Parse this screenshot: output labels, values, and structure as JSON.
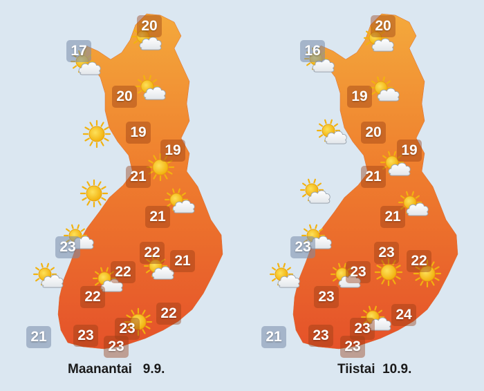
{
  "maps": [
    {
      "day_label": "Maanantai   9.9.",
      "temps": [
        {
          "value": "20"
        },
        {
          "value": "17"
        },
        {
          "value": "20"
        },
        {
          "value": "19"
        },
        {
          "value": "19"
        },
        {
          "value": "21"
        },
        {
          "value": "21"
        },
        {
          "value": "23"
        },
        {
          "value": "22"
        },
        {
          "value": "22"
        },
        {
          "value": "21"
        },
        {
          "value": "22"
        },
        {
          "value": "22"
        },
        {
          "value": "23"
        },
        {
          "value": "21"
        },
        {
          "value": "23"
        },
        {
          "value": "23"
        }
      ],
      "icons": [
        "partly-cloudy-icon",
        "partly-cloudy-icon",
        "partly-cloudy-icon",
        "sun-icon",
        "sun-icon",
        "sun-icon",
        "partly-cloudy-icon",
        "partly-cloudy-icon",
        "partly-cloudy-icon",
        "partly-cloudy-icon",
        "partly-cloudy-icon",
        "sun-icon"
      ]
    },
    {
      "day_label": "Tiistai  10.9.",
      "temps": [
        {
          "value": "20"
        },
        {
          "value": "16"
        },
        {
          "value": "19"
        },
        {
          "value": "20"
        },
        {
          "value": "19"
        },
        {
          "value": "21"
        },
        {
          "value": "21"
        },
        {
          "value": "23"
        },
        {
          "value": "23"
        },
        {
          "value": "23"
        },
        {
          "value": "22"
        },
        {
          "value": "23"
        },
        {
          "value": "24"
        },
        {
          "value": "23"
        },
        {
          "value": "21"
        },
        {
          "value": "23"
        },
        {
          "value": "23"
        }
      ],
      "icons": [
        "partly-cloudy-icon",
        "partly-cloudy-icon",
        "partly-cloudy-icon",
        "partly-cloudy-icon",
        "partly-cloudy-icon",
        "partly-cloudy-icon",
        "partly-cloudy-icon",
        "partly-cloudy-icon",
        "partly-cloudy-icon",
        "partly-cloudy-icon",
        "sun-icon",
        "partly-cloudy-icon",
        "sun-icon"
      ]
    }
  ],
  "colors": {
    "background": "#dbe7f1",
    "land_north": "#f3a43a",
    "land_south": "#e8592a",
    "sun": "#f7c21a",
    "cloud": "#ffffff"
  }
}
